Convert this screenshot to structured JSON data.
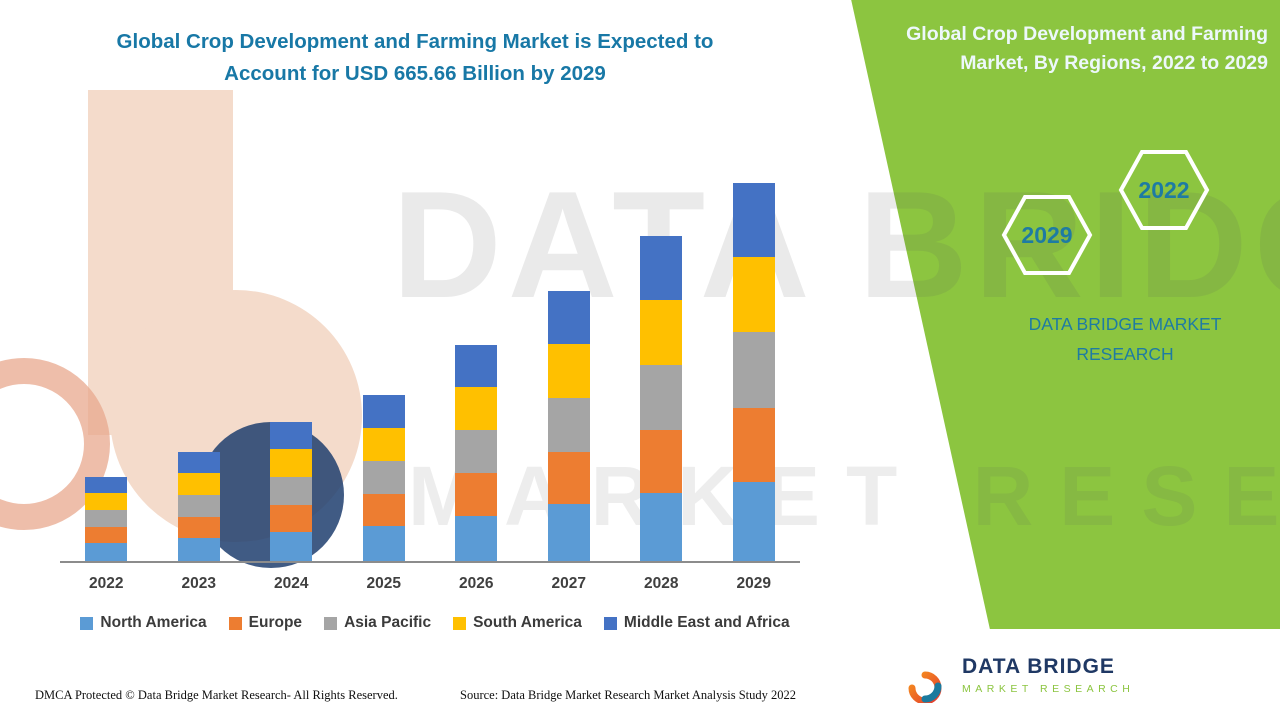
{
  "header": {
    "title": "Global Crop Development and Farming Market is Expected to Account for USD 665.66 Billion by 2029"
  },
  "side_panel": {
    "title": "Global Crop Development and Farming Market, By Regions, 2022 to 2029",
    "hexagon_left": "2029",
    "hexagon_right": "2022",
    "brand": "DATA BRIDGE MARKET RESEARCH",
    "panel_color": "#8CC540",
    "accent_text_color": "#1E7BA3"
  },
  "watermark": {
    "line1": "DATA BRIDGE",
    "line2": "MARKET RESEARCH"
  },
  "footer": {
    "dmca": "DMCA Protected © Data Bridge Market Research- All Rights Reserved.",
    "source": "Source: Data Bridge Market Research Market Analysis Study 2022"
  },
  "logo": {
    "name": "DATA BRIDGE",
    "tagline": "MARKET RESEARCH"
  },
  "chart_data": {
    "type": "bar",
    "stacked": true,
    "title": "Global Crop Development and Farming Market is Expected to Account for USD 665.66 Billion by 2029",
    "categories": [
      "2022",
      "2023",
      "2024",
      "2025",
      "2026",
      "2027",
      "2028",
      "2029"
    ],
    "series": [
      {
        "name": "North America",
        "color": "#5B9BD5",
        "values": [
          31.2,
          40.4,
          51.3,
          61.3,
          80.0,
          99.8,
          120.0,
          139.8
        ]
      },
      {
        "name": "Europe",
        "color": "#ED7D31",
        "values": [
          29.0,
          37.5,
          47.7,
          56.9,
          74.3,
          92.7,
          111.4,
          129.8
        ]
      },
      {
        "name": "Asia Pacific",
        "color": "#A5A5A5",
        "values": [
          29.7,
          38.4,
          48.9,
          58.4,
          76.2,
          95.1,
          114.3,
          133.1
        ]
      },
      {
        "name": "South America",
        "color": "#FFC000",
        "values": [
          29.4,
          38.1,
          48.4,
          57.8,
          75.4,
          94.1,
          113.1,
          131.8
        ]
      },
      {
        "name": "Middle East and Africa",
        "color": "#4472C4",
        "values": [
          29.3,
          37.8,
          48.2,
          57.4,
          75.0,
          93.6,
          112.6,
          131.2
        ]
      }
    ],
    "xlabel": "",
    "ylabel": "",
    "ylim": [
      0,
      700
    ],
    "grid": false,
    "legend_position": "bottom"
  }
}
